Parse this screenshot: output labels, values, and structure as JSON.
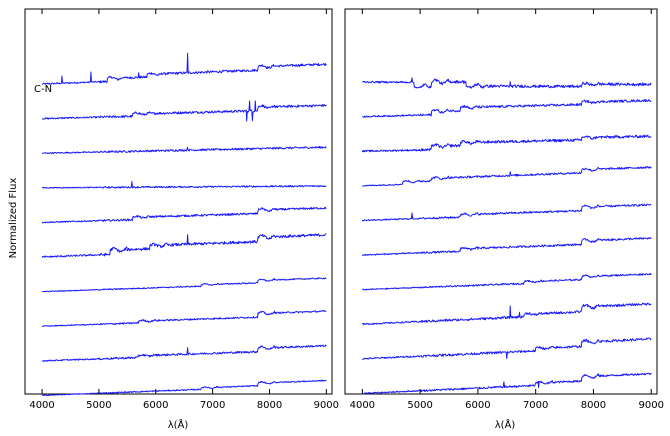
{
  "figure": {
    "ylabel": "Normalized Flux",
    "line_color": "#1a1aff"
  },
  "chart_data": [
    {
      "type": "line",
      "panel": "left",
      "xlabel": "λ(Å)",
      "xlim": [
        3700,
        9100
      ],
      "xticks": [
        4000,
        5000,
        6000,
        7000,
        8000,
        9000
      ],
      "y_ticks_shown": false,
      "annotation": "C-N",
      "series": [
        {
          "offset": 0,
          "start": 4000,
          "steps": [
            [
              5150,
              0.25
            ],
            [
              5850,
              0.22
            ],
            [
              7800,
              0.28
            ]
          ],
          "slope": 0.9,
          "lines": [
            [
              4350,
              0.6
            ],
            [
              4860,
              0.9
            ],
            [
              5700,
              0.3
            ],
            [
              6563,
              1.6
            ]
          ],
          "noise": 0.12
        },
        {
          "offset": 1,
          "start": 4000,
          "steps": [
            [
              5600,
              0.2
            ],
            [
              7800,
              0.3
            ]
          ],
          "slope": 0.6,
          "lines": [
            [
              7600,
              -0.8
            ],
            [
              7650,
              0.9
            ],
            [
              7700,
              -0.8
            ],
            [
              7750,
              0.9
            ]
          ],
          "noise": 0.12
        },
        {
          "offset": 2,
          "start": 4000,
          "steps": [],
          "slope": 0.5,
          "lines": [
            [
              6563,
              0.3
            ]
          ],
          "noise": 0.1
        },
        {
          "offset": 3,
          "start": 4000,
          "steps": [],
          "slope": 0.15,
          "lines": [
            [
              5577,
              0.5
            ]
          ],
          "noise": 0.08
        },
        {
          "offset": 4,
          "start": 4000,
          "steps": [
            [
              5600,
              0.2
            ],
            [
              7800,
              0.3
            ]
          ],
          "slope": 0.7,
          "lines": [],
          "noise": 0.1
        },
        {
          "offset": 5,
          "start": 4000,
          "steps": [
            [
              5200,
              0.35
            ],
            [
              5900,
              0.25
            ],
            [
              7800,
              0.35
            ]
          ],
          "slope": 0.9,
          "lines": [
            [
              6563,
              0.7
            ]
          ],
          "noise": 0.14
        },
        {
          "offset": 6,
          "start": 4000,
          "steps": [
            [
              6800,
              0.12
            ],
            [
              7800,
              0.2
            ]
          ],
          "slope": 0.8,
          "lines": [],
          "noise": 0.06
        },
        {
          "offset": 7,
          "start": 4000,
          "steps": [
            [
              5700,
              0.15
            ],
            [
              7800,
              0.3
            ]
          ],
          "slope": 0.8,
          "lines": [],
          "noise": 0.08
        },
        {
          "offset": 8,
          "start": 4000,
          "steps": [
            [
              5700,
              0.15
            ],
            [
              7800,
              0.3
            ]
          ],
          "slope": 0.8,
          "lines": [
            [
              6563,
              0.5
            ]
          ],
          "noise": 0.1
        },
        {
          "offset": 9,
          "start": 4000,
          "steps": [
            [
              6800,
              0.12
            ],
            [
              7800,
              0.22
            ]
          ],
          "slope": 0.9,
          "lines": [],
          "noise": 0.06
        }
      ]
    },
    {
      "type": "line",
      "panel": "right",
      "xlabel": "λ(Å)",
      "xlim": [
        3700,
        9100
      ],
      "xticks": [
        4000,
        5000,
        6000,
        7000,
        8000,
        9000
      ],
      "y_ticks_shown": false,
      "series": [
        {
          "offset": 0,
          "start": 4000,
          "steps": [
            [
              4900,
              -0.35
            ],
            [
              5200,
              0.4
            ],
            [
              5800,
              -0.35
            ],
            [
              7800,
              0.2
            ]
          ],
          "slope": -0.1,
          "lines": [
            [
              4861,
              0.4
            ],
            [
              6563,
              0.3
            ]
          ],
          "noise": 0.14
        },
        {
          "offset": 1,
          "start": 4000,
          "steps": [
            [
              5200,
              0.3
            ],
            [
              5700,
              0.25
            ],
            [
              7800,
              0.2
            ]
          ],
          "slope": 0.6,
          "lines": [],
          "noise": 0.12
        },
        {
          "offset": 2,
          "start": 4000,
          "steps": [
            [
              5200,
              0.3
            ],
            [
              5700,
              0.25
            ],
            [
              7800,
              0.2
            ]
          ],
          "slope": 0.5,
          "lines": [],
          "noise": 0.14
        },
        {
          "offset": 3,
          "start": 4000,
          "steps": [
            [
              4700,
              0.2
            ],
            [
              5200,
              0.2
            ],
            [
              7800,
              0.25
            ]
          ],
          "slope": 0.9,
          "lines": [
            [
              6563,
              0.3
            ]
          ],
          "noise": 0.1
        },
        {
          "offset": 4,
          "start": 4000,
          "steps": [
            [
              5700,
              0.2
            ],
            [
              7800,
              0.3
            ]
          ],
          "slope": 0.8,
          "lines": [
            [
              4861,
              0.5
            ]
          ],
          "noise": 0.1
        },
        {
          "offset": 5,
          "start": 4000,
          "steps": [
            [
              5700,
              0.2
            ],
            [
              7800,
              0.3
            ]
          ],
          "slope": 0.9,
          "lines": [],
          "noise": 0.1
        },
        {
          "offset": 6,
          "start": 4000,
          "steps": [
            [
              6800,
              0.15
            ],
            [
              7800,
              0.25
            ]
          ],
          "slope": 0.9,
          "lines": [],
          "noise": 0.08
        },
        {
          "offset": 7,
          "start": 4000,
          "steps": [
            [
              6800,
              0.2
            ],
            [
              7800,
              0.4
            ]
          ],
          "slope": 1.1,
          "lines": [
            [
              6563,
              1.0
            ],
            [
              6720,
              0.4
            ]
          ],
          "noise": 0.12
        },
        {
          "offset": 8,
          "start": 4000,
          "steps": [
            [
              7000,
              0.2
            ],
            [
              7800,
              0.35
            ]
          ],
          "slope": 1.1,
          "lines": [
            [
              6500,
              -0.6
            ]
          ],
          "noise": 0.12
        },
        {
          "offset": 9,
          "start": 4000,
          "steps": [
            [
              7000,
              0.2
            ],
            [
              7800,
              0.35
            ]
          ],
          "slope": 1.1,
          "lines": [
            [
              7050,
              -0.5
            ],
            [
              6450,
              0.4
            ]
          ],
          "noise": 0.1
        }
      ]
    }
  ]
}
